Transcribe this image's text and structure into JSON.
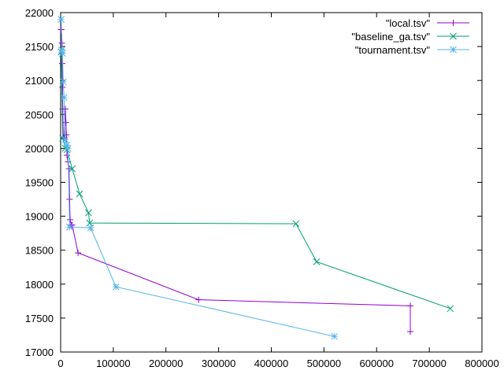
{
  "chart_data": {
    "type": "line",
    "title": "",
    "xlabel": "",
    "ylabel": "",
    "xlim": [
      0,
      800000
    ],
    "ylim": [
      17000,
      22000
    ],
    "xticks": [
      0,
      100000,
      200000,
      300000,
      400000,
      500000,
      600000,
      700000,
      800000
    ],
    "yticks": [
      17000,
      17500,
      18000,
      18500,
      19000,
      19500,
      20000,
      20500,
      21000,
      21500,
      22000
    ],
    "xtick_labels": [
      "0",
      "100000",
      "200000",
      "300000",
      "400000",
      "500000",
      "600000",
      "700000",
      "800000"
    ],
    "ytick_labels": [
      "17000",
      "17500",
      "18000",
      "18500",
      "19000",
      "19500",
      "20000",
      "20500",
      "21000",
      "21500",
      "22000"
    ],
    "grid": false,
    "legend_position": "top-right",
    "series": [
      {
        "name": "\"local.tsv\"",
        "color": "#9400d3",
        "marker": "plus",
        "points": [
          [
            500,
            21750
          ],
          [
            1500,
            21750
          ],
          [
            2500,
            21550
          ],
          [
            3000,
            21250
          ],
          [
            3500,
            20900
          ],
          [
            4000,
            20580
          ],
          [
            5000,
            20150
          ],
          [
            7000,
            20150
          ],
          [
            9000,
            20580
          ],
          [
            10000,
            20380
          ],
          [
            11000,
            20200
          ],
          [
            12000,
            19900
          ],
          [
            14000,
            19800
          ],
          [
            16000,
            19700
          ],
          [
            17000,
            19250
          ],
          [
            18000,
            18950
          ],
          [
            20000,
            18870
          ],
          [
            22000,
            18870
          ],
          [
            33000,
            18460
          ],
          [
            262000,
            17770
          ],
          [
            664000,
            17680
          ],
          [
            664000,
            17300
          ]
        ]
      },
      {
        "name": "\"baseline_ga.tsv\"",
        "color": "#009e73",
        "marker": "cross",
        "points": [
          [
            1000,
            21420
          ],
          [
            4000,
            20150
          ],
          [
            9000,
            20000
          ],
          [
            12000,
            19980
          ],
          [
            22000,
            19700
          ],
          [
            36000,
            19330
          ],
          [
            53000,
            19050
          ],
          [
            55000,
            18900
          ],
          [
            447000,
            18890
          ],
          [
            486000,
            18330
          ],
          [
            740000,
            17640
          ]
        ]
      },
      {
        "name": "\"tournament.tsv\"",
        "color": "#56b4e9",
        "marker": "star",
        "points": [
          [
            1000,
            21900
          ],
          [
            2000,
            21450
          ],
          [
            3500,
            21400
          ],
          [
            5000,
            20980
          ],
          [
            6500,
            20750
          ],
          [
            9000,
            20130
          ],
          [
            12000,
            20050
          ],
          [
            14000,
            20000
          ],
          [
            17000,
            18840
          ],
          [
            57000,
            18830
          ],
          [
            105000,
            17960
          ],
          [
            520000,
            17230
          ]
        ]
      }
    ]
  }
}
